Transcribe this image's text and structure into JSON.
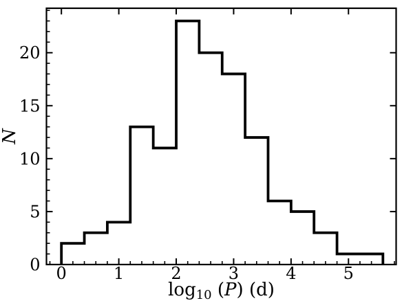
{
  "figure": {
    "background": "#ffffff",
    "line_color": "#000000"
  },
  "chart_data": {
    "type": "histogram-step",
    "title": "",
    "xlabel_text": "log10 (P) (d)",
    "xlabel_parts": [
      {
        "t": "log",
        "style": "normal"
      },
      {
        "t": "10",
        "style": "subscript"
      },
      {
        "t": " (",
        "style": "normal"
      },
      {
        "t": "P",
        "style": "italic"
      },
      {
        "t": ") (d)",
        "style": "normal"
      }
    ],
    "ylabel": "N",
    "bin_edges": [
      0.0,
      0.4,
      0.8,
      1.2,
      1.6,
      2.0,
      2.4,
      2.8,
      3.2,
      3.6,
      4.0,
      4.4,
      4.8,
      5.2,
      5.6
    ],
    "counts": [
      2,
      3,
      4,
      13,
      11,
      23,
      20,
      18,
      12,
      6,
      5,
      3,
      1,
      1
    ],
    "xlim": [
      -0.26,
      5.83
    ],
    "ylim": [
      0,
      24.2
    ],
    "x_major_ticks": [
      0,
      1,
      2,
      3,
      4,
      5
    ],
    "x_tick_labels": [
      "0",
      "1",
      "2",
      "3",
      "4",
      "5"
    ],
    "x_minor_step": 0.2,
    "y_major_ticks": [
      0,
      5,
      10,
      15,
      20
    ],
    "y_tick_labels": [
      "0",
      "5",
      "10",
      "15",
      "20"
    ],
    "y_minor_step": 1,
    "grid": false,
    "legend": null,
    "tick_direction": "in",
    "ticks_on_sides": {
      "bottom": "major+minor",
      "left": "major+minor",
      "top": "major",
      "right": "major"
    }
  }
}
